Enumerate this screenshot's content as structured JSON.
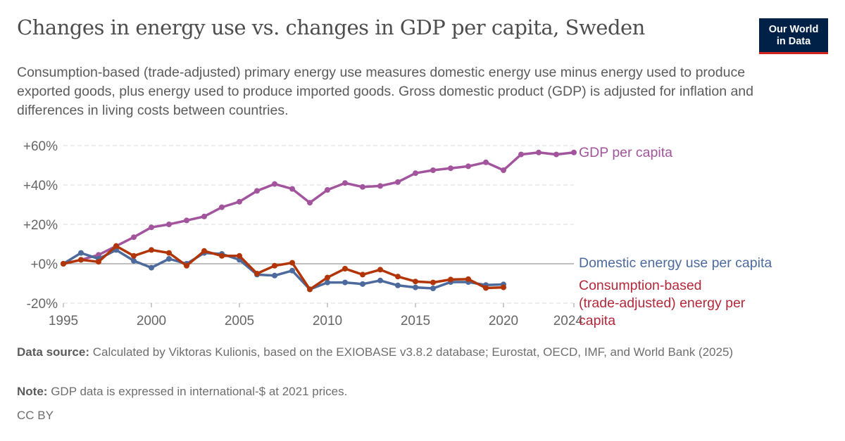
{
  "title": "Changes in energy use vs. changes in GDP per capita, Sweden",
  "subtitle": "Consumption-based (trade-adjusted) primary energy use measures domestic energy use minus energy used to produce exported goods, plus energy used to produce imported goods. Gross domestic product (GDP) is adjusted for inflation and differences in living costs between countries.",
  "logo": {
    "line1": "Our World",
    "line2": "in Data",
    "bg": "#002147",
    "accent": "#ce261e"
  },
  "footer": {
    "source_label": "Data source:",
    "source": "Calculated by Viktoras Kulionis, based on the EXIOBASE v3.8.2 database; Eurostat, OECD, IMF, and World Bank (2025)",
    "note_label": "Note:",
    "note": "GDP data is expressed in international-$ at 2021 prices.",
    "license": "CC BY"
  },
  "chart_data": {
    "type": "line",
    "ylim": [
      -20,
      60
    ],
    "yticks": [
      -20,
      0,
      20,
      40,
      60
    ],
    "ytick_labels": [
      "-20%",
      "+0%",
      "+20%",
      "+40%",
      "+60%"
    ],
    "xlim": [
      1995,
      2024
    ],
    "xticks": [
      1995,
      2000,
      2005,
      2010,
      2015,
      2020,
      2024
    ],
    "xtick_labels": [
      "1995",
      "2000",
      "2005",
      "2010",
      "2015",
      "2020",
      "2024"
    ],
    "grid": "horizontal dashed",
    "legend": "inline labels at line ends",
    "series": [
      {
        "name": "GDP per capita",
        "color": "#a2559c",
        "x": [
          1995,
          1996,
          1997,
          1998,
          1999,
          2000,
          2001,
          2002,
          2003,
          2004,
          2005,
          2006,
          2007,
          2008,
          2009,
          2010,
          2011,
          2012,
          2013,
          2014,
          2015,
          2016,
          2017,
          2018,
          2019,
          2020,
          2021,
          2022,
          2023,
          2024
        ],
        "values": [
          0,
          2,
          4.5,
          9,
          13.5,
          18.5,
          20,
          22,
          24,
          28.7,
          31.5,
          37,
          40.5,
          38,
          31,
          37.5,
          41,
          39,
          39.5,
          41.5,
          46,
          47.5,
          48.5,
          49.5,
          51.5,
          47.5,
          55.5,
          56.5,
          55.5,
          56.5
        ]
      },
      {
        "name": "Domestic energy use per capita",
        "color": "#4c6a9c",
        "x": [
          1995,
          1996,
          1997,
          1998,
          1999,
          2000,
          2001,
          2002,
          2003,
          2004,
          2005,
          2006,
          2007,
          2008,
          2009,
          2010,
          2011,
          2012,
          2013,
          2014,
          2015,
          2016,
          2017,
          2018,
          2019,
          2020
        ],
        "values": [
          0,
          5.5,
          2.5,
          7,
          1.5,
          -2,
          2.5,
          0,
          5.5,
          5,
          2,
          -5.5,
          -6,
          -3.5,
          -13,
          -9.5,
          -9.5,
          -10.3,
          -8.5,
          -11,
          -12,
          -12.5,
          -9.3,
          -9.3,
          -10.8,
          -10.5
        ]
      },
      {
        "name": "Consumption-based (trade-adjusted) energy per capita",
        "color": "#b13507",
        "x": [
          1995,
          1996,
          1997,
          1998,
          1999,
          2000,
          2001,
          2002,
          2003,
          2004,
          2005,
          2006,
          2007,
          2008,
          2009,
          2010,
          2011,
          2012,
          2013,
          2014,
          2015,
          2016,
          2017,
          2018,
          2019,
          2020
        ],
        "values": [
          0,
          2,
          1,
          9,
          4,
          7,
          5.5,
          -1,
          6.5,
          4,
          4,
          -5,
          -1,
          0.5,
          -13,
          -7,
          -2.5,
          -5.5,
          -3,
          -6.5,
          -9,
          -9.5,
          -8,
          -7.8,
          -12.3,
          -12
        ]
      }
    ],
    "labels": {
      "gdp": "GDP per capita",
      "domestic": "Domestic energy use per capita",
      "consumption_lines": [
        "Consumption-based",
        "(trade-adjusted) energy per",
        "capita"
      ]
    }
  }
}
